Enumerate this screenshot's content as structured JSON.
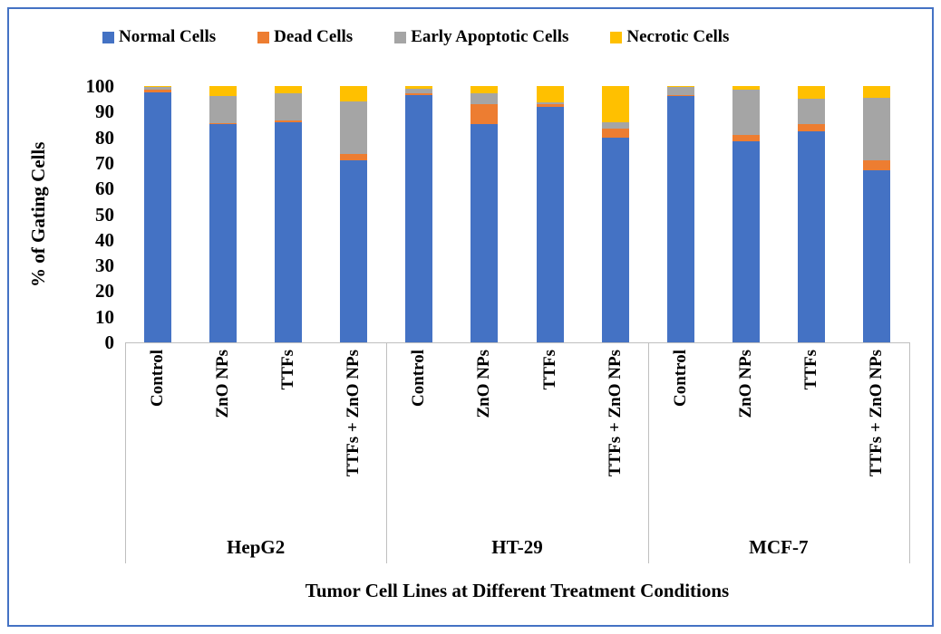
{
  "chart_data": {
    "type": "bar",
    "subtype": "stacked-vertical",
    "title": "",
    "ylabel": "% of Gating Cells",
    "xlabel": "Tumor Cell Lines at Different Treatment Conditions",
    "ylim": [
      0,
      100
    ],
    "ytick_step": 10,
    "grid": false,
    "legend_position": "top",
    "series": [
      {
        "name": "Normal Cells",
        "color": "#4472C4"
      },
      {
        "name": "Dead Cells",
        "color": "#ED7D31"
      },
      {
        "name": "Early Apoptotic Cells",
        "color": "#A5A5A5"
      },
      {
        "name": "Necrotic Cells",
        "color": "#FFC000"
      }
    ],
    "groups": [
      {
        "label": "HepG2",
        "bars": [
          {
            "condition": "Control",
            "values": [
              97.5,
              1,
              1,
              0.5
            ]
          },
          {
            "condition": "ZnO NPs",
            "values": [
              85,
              0.5,
              10.5,
              4
            ]
          },
          {
            "condition": "TTFs",
            "values": [
              86,
              0.5,
              10.5,
              3
            ]
          },
          {
            "condition": "TTFs + ZnO NPs",
            "values": [
              71,
              2.5,
              20.5,
              6
            ]
          }
        ]
      },
      {
        "label": "HT-29",
        "bars": [
          {
            "condition": "Control",
            "values": [
              96.5,
              0.5,
              2,
              1
            ]
          },
          {
            "condition": "ZnO NPs",
            "values": [
              85,
              8,
              4,
              3
            ]
          },
          {
            "condition": "TTFs",
            "values": [
              92,
              1,
              0.5,
              6.5
            ]
          },
          {
            "condition": "TTFs + ZnO NPs",
            "values": [
              80,
              3.5,
              2.5,
              14
            ]
          }
        ]
      },
      {
        "label": "MCF-7",
        "bars": [
          {
            "condition": "Control",
            "values": [
              96,
              0.5,
              3,
              0.5
            ]
          },
          {
            "condition": "ZnO NPs",
            "values": [
              78.5,
              2.5,
              17.5,
              1.5
            ]
          },
          {
            "condition": "TTFs",
            "values": [
              82.5,
              2.5,
              10,
              5
            ]
          },
          {
            "condition": "TTFs + ZnO NPs",
            "values": [
              67,
              4,
              24.5,
              4.5
            ]
          }
        ]
      }
    ],
    "colors": {
      "frame_border": "#4472C4",
      "axis_line": "#BFBFBF",
      "text": "#000000"
    }
  }
}
